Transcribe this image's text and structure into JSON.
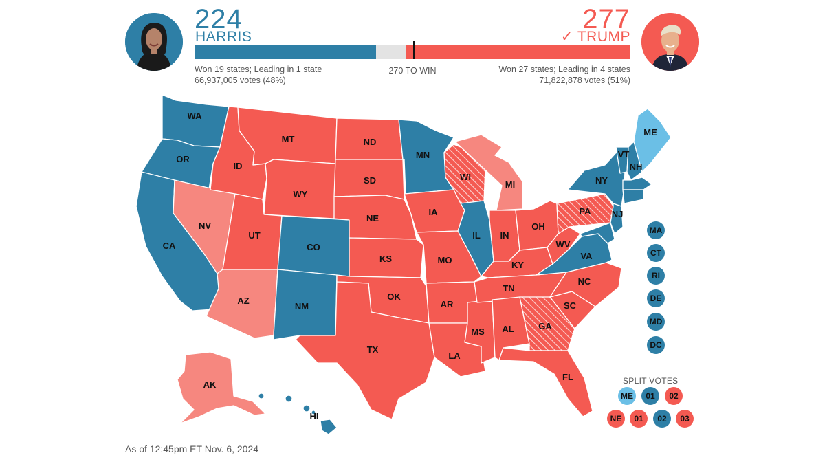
{
  "header": {
    "harris": {
      "count": "224",
      "name": "HARRIS",
      "status": "Won 19 states; Leading in 1 state",
      "votes": "66,937,005 votes (48%)",
      "electoral_votes": 224,
      "color": "#2e7fa6"
    },
    "trump": {
      "count": "277",
      "name": "TRUMP",
      "check": "✓",
      "status": "Won 27 states; Leading in 4 states",
      "votes": "71,822,878 votes (51%)",
      "electoral_votes": 277,
      "color": "#f45a52"
    },
    "threshold_label": "270 TO WIN",
    "threshold": 270,
    "total": 538
  },
  "colors": {
    "dem_won": "#2e7fa6",
    "dem_lead": "#6bbfe6",
    "rep_won": "#f45a52",
    "rep_lead": "#f6877f",
    "rep_flip": "#f45a52",
    "undecided": "#e3e3e3"
  },
  "states": {
    "WA": "WA",
    "OR": "OR",
    "CA": "CA",
    "NV": "NV",
    "ID": "ID",
    "MT": "MT",
    "WY": "WY",
    "UT": "UT",
    "CO": "CO",
    "AZ": "AZ",
    "NM": "NM",
    "ND": "ND",
    "SD": "SD",
    "NE": "NE",
    "KS": "KS",
    "OK": "OK",
    "TX": "TX",
    "MN": "MN",
    "IA": "IA",
    "MO": "MO",
    "AR": "AR",
    "LA": "LA",
    "WI": "WI",
    "IL": "IL",
    "MI": "MI",
    "IN": "IN",
    "OH": "OH",
    "KY": "KY",
    "TN": "TN",
    "MS": "MS",
    "AL": "AL",
    "GA": "GA",
    "FL": "FL",
    "SC": "SC",
    "NC": "NC",
    "VA": "VA",
    "WV": "WV",
    "PA": "PA",
    "NY": "NY",
    "VT": "VT",
    "NH": "NH",
    "ME": "ME",
    "NJ": "NJ",
    "AK": "AK",
    "HI": "HI"
  },
  "small_states": [
    "MA",
    "CT",
    "RI",
    "DE",
    "MD",
    "DC"
  ],
  "split_votes": {
    "title": "SPLIT VOTES",
    "maine": [
      {
        "label": "ME",
        "party": "dem_lead"
      },
      {
        "label": "01",
        "party": "dem_won"
      },
      {
        "label": "02",
        "party": "rep_won"
      }
    ],
    "nebraska": [
      {
        "label": "NE",
        "party": "rep_won"
      },
      {
        "label": "01",
        "party": "rep_won"
      },
      {
        "label": "02",
        "party": "dem_won"
      },
      {
        "label": "03",
        "party": "rep_won"
      }
    ]
  },
  "footer": {
    "as_of": "As of 12:45pm ET Nov. 6, 2024"
  }
}
